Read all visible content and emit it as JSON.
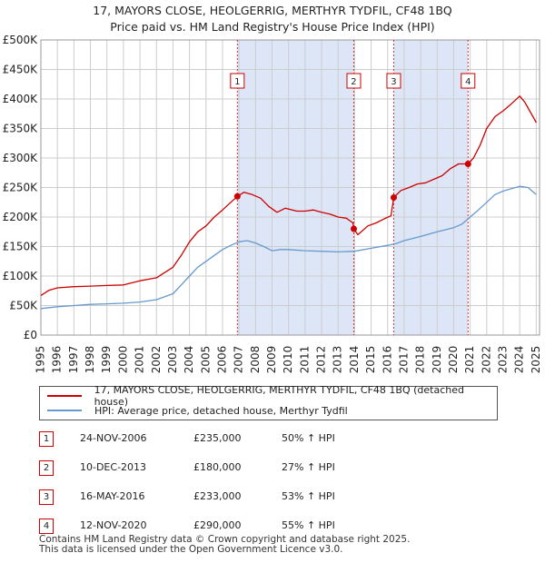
{
  "title_line1": "17, MAYORS CLOSE, HEOLGERRIG, MERTHYR TYDFIL, CF48 1BQ",
  "title_line2": "Price paid vs. HM Land Registry's House Price Index (HPI)",
  "colors": {
    "property": "#cc0000",
    "hpi": "#6699cc",
    "shade": "#dde6f7",
    "grid": "#cccccc"
  },
  "legend": {
    "property_label": "17, MAYORS CLOSE, HEOLGERRIG, MERTHYR TYDFIL, CF48 1BQ (detached house)",
    "hpi_label": "HPI: Average price, detached house, Merthyr Tydfil"
  },
  "sales": [
    {
      "num": "1",
      "date": "24-NOV-2006",
      "price": "£235,000",
      "hpi_change": "50% ↑ HPI"
    },
    {
      "num": "2",
      "date": "10-DEC-2013",
      "price": "£180,000",
      "hpi_change": "27% ↑ HPI"
    },
    {
      "num": "3",
      "date": "16-MAY-2016",
      "price": "£233,000",
      "hpi_change": "53% ↑ HPI"
    },
    {
      "num": "4",
      "date": "12-NOV-2020",
      "price": "£290,000",
      "hpi_change": "55% ↑ HPI"
    }
  ],
  "footer_line1": "Contains HM Land Registry data © Crown copyright and database right 2025.",
  "footer_line2": "This data is licensed under the Open Government Licence v3.0.",
  "chart_data": {
    "type": "line",
    "title": "17, MAYORS CLOSE, HEOLGERRIG, MERTHYR TYDFIL, CF48 1BQ",
    "subtitle": "Price paid vs. HM Land Registry's House Price Index (HPI)",
    "xlabel": "",
    "ylabel": "",
    "xlim": [
      1995,
      2025.2
    ],
    "ylim": [
      0,
      500000
    ],
    "y_ticks": [
      0,
      50000,
      100000,
      150000,
      200000,
      250000,
      300000,
      350000,
      400000,
      450000,
      500000
    ],
    "y_tick_labels": [
      "£0",
      "£50K",
      "£100K",
      "£150K",
      "£200K",
      "£250K",
      "£300K",
      "£350K",
      "£400K",
      "£450K",
      "£500K"
    ],
    "x_ticks": [
      1995,
      1996,
      1997,
      1998,
      1999,
      2000,
      2001,
      2002,
      2003,
      2004,
      2005,
      2006,
      2007,
      2008,
      2009,
      2010,
      2011,
      2012,
      2013,
      2014,
      2015,
      2016,
      2017,
      2018,
      2019,
      2020,
      2021,
      2022,
      2023,
      2024,
      2025
    ],
    "grid": true,
    "shaded_ranges": [
      [
        2006.9,
        2013.95
      ],
      [
        2016.37,
        2020.87
      ]
    ],
    "sale_markers": [
      {
        "label": "1",
        "x": 2006.9,
        "y": 235000
      },
      {
        "label": "2",
        "x": 2013.95,
        "y": 180000
      },
      {
        "label": "3",
        "x": 2016.37,
        "y": 233000
      },
      {
        "label": "4",
        "x": 2020.87,
        "y": 290000
      }
    ],
    "series": [
      {
        "name": "17, MAYORS CLOSE, HEOLGERRIG, MERTHYR TYDFIL, CF48 1BQ (detached house)",
        "color": "#cc0000",
        "x": [
          1995,
          1995.5,
          1996,
          1997,
          1998,
          1999,
          2000,
          2001,
          2002,
          2003,
          2003.5,
          2004,
          2004.5,
          2005,
          2005.5,
          2006,
          2006.5,
          2006.9,
          2007.3,
          2007.8,
          2008.3,
          2008.8,
          2009.3,
          2009.8,
          2010.5,
          2011,
          2011.5,
          2012,
          2012.5,
          2013,
          2013.5,
          2013.9,
          2013.95,
          2014.2,
          2014.8,
          2015.3,
          2015.8,
          2016.2,
          2016.37,
          2016.8,
          2017.3,
          2017.8,
          2018.3,
          2018.8,
          2019.3,
          2019.8,
          2020.3,
          2020.87,
          2021.2,
          2021.6,
          2022,
          2022.5,
          2023,
          2023.5,
          2024,
          2024.3,
          2024.6,
          2025
        ],
        "y": [
          67000,
          76000,
          80000,
          82000,
          83000,
          84000,
          85000,
          92000,
          97000,
          115000,
          135000,
          158000,
          175000,
          185000,
          200000,
          212000,
          225000,
          235000,
          242000,
          238000,
          232000,
          218000,
          208000,
          215000,
          210000,
          210000,
          212000,
          208000,
          205000,
          200000,
          198000,
          190000,
          180000,
          170000,
          185000,
          190000,
          197000,
          202000,
          233000,
          245000,
          250000,
          256000,
          258000,
          264000,
          270000,
          282000,
          290000,
          290000,
          300000,
          322000,
          350000,
          370000,
          380000,
          392000,
          405000,
          395000,
          380000,
          360000
        ]
      },
      {
        "name": "HPI: Average price, detached house, Merthyr Tydfil",
        "color": "#6699cc",
        "x": [
          1995,
          1996,
          1997,
          1998,
          1999,
          2000,
          2001,
          2002,
          2003,
          2003.5,
          2004,
          2004.5,
          2005,
          2005.5,
          2006,
          2006.5,
          2007,
          2007.5,
          2008,
          2008.5,
          2009,
          2009.5,
          2010,
          2011,
          2012,
          2013,
          2014,
          2015,
          2016,
          2016.5,
          2017,
          2018,
          2019,
          2020,
          2020.5,
          2021,
          2021.5,
          2022,
          2022.5,
          2023,
          2023.5,
          2024,
          2024.5,
          2025
        ],
        "y": [
          45000,
          48000,
          50000,
          52000,
          53000,
          54000,
          56000,
          60000,
          70000,
          85000,
          100000,
          115000,
          125000,
          135000,
          145000,
          152000,
          158000,
          160000,
          156000,
          150000,
          143000,
          145000,
          145000,
          143000,
          142000,
          141000,
          142000,
          147000,
          152000,
          155000,
          160000,
          167000,
          175000,
          182000,
          188000,
          200000,
          212000,
          225000,
          238000,
          244000,
          248000,
          252000,
          250000,
          238000
        ]
      }
    ]
  }
}
